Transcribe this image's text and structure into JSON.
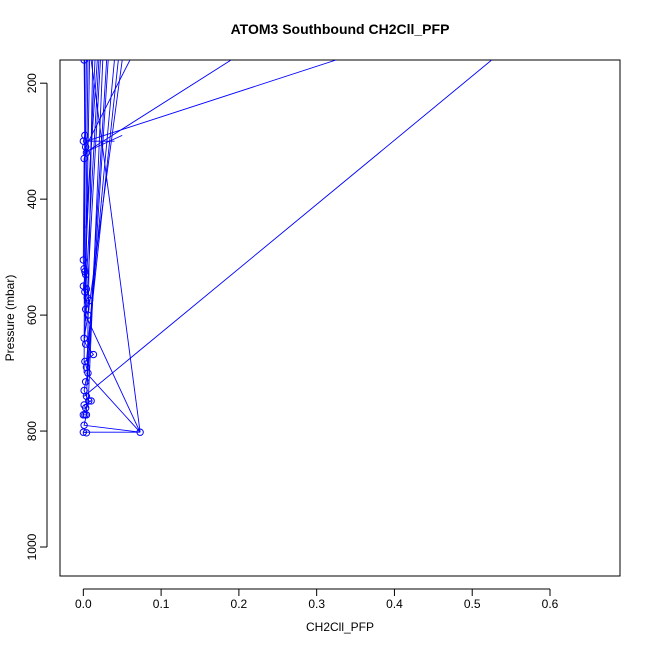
{
  "chart_data": {
    "type": "scatter",
    "title": "ATOM3 Southbound CH2Cll_PFP",
    "xlabel": "CH2Cll_PFP",
    "ylabel": "Pressure (mbar)",
    "xlim": [
      -0.03,
      0.69
    ],
    "ylim": [
      1050,
      160
    ],
    "y_reversed": true,
    "x_ticks": [
      0.0,
      0.1,
      0.2,
      0.3,
      0.4,
      0.5,
      0.6
    ],
    "x_tick_labels": [
      "0.0",
      "0.1",
      "0.2",
      "0.3",
      "0.4",
      "0.5",
      "0.6"
    ],
    "y_ticks": [
      200,
      400,
      600,
      800,
      1000
    ],
    "y_tick_labels": [
      "200",
      "400",
      "600",
      "800",
      "1000"
    ],
    "grid": false,
    "legend": "none",
    "colors": {
      "series": "#0000ff",
      "axis": "#000000"
    },
    "markers": "open-circle",
    "series": [
      {
        "points": [
          [
            0.001,
            160
          ],
          [
            0.002,
            290
          ],
          [
            0.0,
            300
          ],
          [
            0.003,
            310
          ],
          [
            0.001,
            330
          ],
          [
            0.004,
            320
          ],
          [
            0.0,
            505
          ],
          [
            0.001,
            520
          ],
          [
            0.002,
            525
          ],
          [
            0.003,
            530
          ],
          [
            0.0,
            550
          ],
          [
            0.004,
            555
          ],
          [
            0.002,
            560
          ],
          [
            0.005,
            570
          ],
          [
            0.008,
            575
          ],
          [
            0.003,
            590
          ],
          [
            0.006,
            600
          ],
          [
            0.001,
            640
          ],
          [
            0.003,
            650
          ],
          [
            0.013,
            668
          ],
          [
            0.002,
            680
          ],
          [
            0.004,
            690
          ],
          [
            0.006,
            700
          ],
          [
            0.003,
            715
          ],
          [
            0.001,
            730
          ],
          [
            0.004,
            740
          ],
          [
            0.007,
            748
          ],
          [
            0.01,
            748
          ],
          [
            0.001,
            755
          ],
          [
            0.003,
            760
          ],
          [
            0.0,
            772
          ],
          [
            0.002,
            772
          ],
          [
            0.004,
            772
          ],
          [
            0.001,
            790
          ],
          [
            0.073,
            802
          ],
          [
            0.0,
            802
          ],
          [
            0.004,
            803
          ]
        ],
        "edges_to_top": [
          {
            "from": [
              0.073,
              802
            ],
            "to": [
              0.01,
              160
            ]
          },
          {
            "from": [
              0.001,
              740
            ],
            "to": [
              0.525,
              160
            ]
          },
          {
            "from": [
              0.004,
              300
            ],
            "to": [
              0.325,
              160
            ]
          },
          {
            "from": [
              0.002,
              320
            ],
            "to": [
              0.19,
              160
            ]
          },
          {
            "from": [
              0.003,
              310
            ],
            "to": [
              0.06,
              160
            ]
          },
          {
            "from": [
              0.006,
              600
            ],
            "to": [
              0.05,
              160
            ]
          },
          {
            "from": [
              0.004,
              680
            ],
            "to": [
              0.04,
              160
            ]
          },
          {
            "from": [
              0.005,
              700
            ],
            "to": [
              0.03,
              160
            ]
          },
          {
            "from": [
              0.003,
              560
            ],
            "to": [
              0.02,
              160
            ]
          },
          {
            "from": [
              0.002,
              530
            ],
            "to": [
              0.015,
              160
            ]
          },
          {
            "from": [
              0.006,
              760
            ],
            "to": [
              0.025,
              160
            ]
          },
          {
            "from": [
              0.002,
              640
            ],
            "to": [
              0.008,
              160
            ]
          },
          {
            "from": [
              0.004,
              772
            ],
            "to": [
              0.012,
              160
            ]
          },
          {
            "from": [
              0.001,
              500
            ],
            "to": [
              0.004,
              160
            ]
          },
          {
            "from": [
              0.003,
              450
            ],
            "to": [
              0.018,
              160
            ]
          },
          {
            "from": [
              0.006,
              650
            ],
            "to": [
              0.045,
              160
            ]
          },
          {
            "from": [
              0.002,
              580
            ],
            "to": [
              0.006,
              160
            ]
          },
          {
            "from": [
              0.001,
              700
            ],
            "to": [
              0.002,
              160
            ]
          },
          {
            "from": [
              0.005,
              720
            ],
            "to": [
              0.032,
              160
            ]
          },
          {
            "from": [
              0.003,
              610
            ],
            "to": [
              0.022,
              160
            ]
          }
        ],
        "cross_edges": [
          {
            "from": [
              0.073,
              802
            ],
            "to": [
              0.004,
              700
            ]
          },
          {
            "from": [
              0.073,
              802
            ],
            "to": [
              0.003,
              600
            ]
          },
          {
            "from": [
              0.004,
              300
            ],
            "to": [
              0.04,
              300
            ]
          },
          {
            "from": [
              0.001,
              320
            ],
            "to": [
              0.05,
              290
            ]
          }
        ]
      }
    ]
  }
}
